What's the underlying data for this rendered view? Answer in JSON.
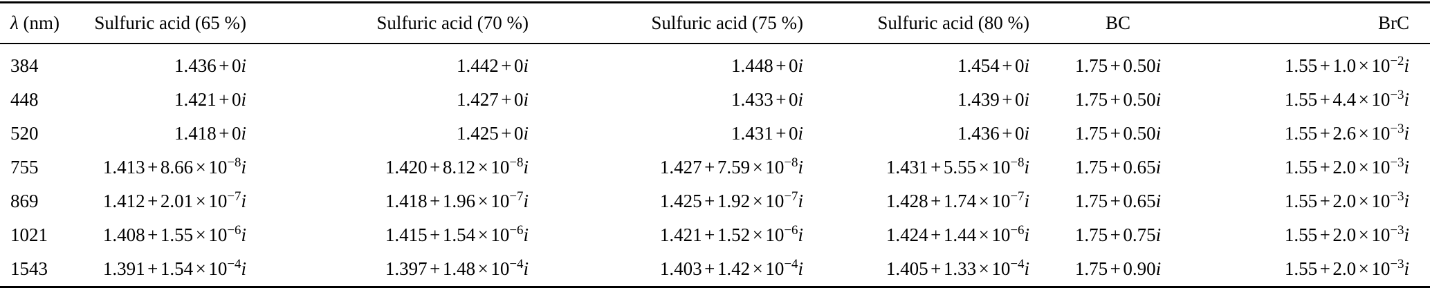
{
  "colors": {
    "background": "#ffffff",
    "text": "#000000",
    "rule": "#000000"
  },
  "table": {
    "plus_symbol": "+",
    "times_symbol": "×",
    "exponent_base": "10",
    "imaginary_unit": "i",
    "columns": [
      {
        "symbol": "λ",
        "unit": " (nm)",
        "label": "λ (nm)",
        "align": "left"
      },
      {
        "label": "Sulfuric acid (65 %)",
        "align": "right"
      },
      {
        "label": "Sulfuric acid (70 %)",
        "align": "right"
      },
      {
        "label": "Sulfuric acid (75 %)",
        "align": "right"
      },
      {
        "label": "Sulfuric acid (80 %)",
        "align": "right"
      },
      {
        "label": "BC",
        "align": "center"
      },
      {
        "label": "BrC",
        "align": "right"
      }
    ],
    "rows": [
      {
        "wavelength": "384",
        "values": [
          {
            "re": "1.436",
            "im": "0"
          },
          {
            "re": "1.442",
            "im": "0"
          },
          {
            "re": "1.448",
            "im": "0"
          },
          {
            "re": "1.454",
            "im": "0"
          },
          {
            "re": "1.75",
            "im": "0.50"
          },
          {
            "re": "1.55",
            "im": "1.0",
            "exp": "−2"
          }
        ]
      },
      {
        "wavelength": "448",
        "values": [
          {
            "re": "1.421",
            "im": "0"
          },
          {
            "re": "1.427",
            "im": "0"
          },
          {
            "re": "1.433",
            "im": "0"
          },
          {
            "re": "1.439",
            "im": "0"
          },
          {
            "re": "1.75",
            "im": "0.50"
          },
          {
            "re": "1.55",
            "im": "4.4",
            "exp": "−3"
          }
        ]
      },
      {
        "wavelength": "520",
        "values": [
          {
            "re": "1.418",
            "im": "0"
          },
          {
            "re": "1.425",
            "im": "0"
          },
          {
            "re": "1.431",
            "im": "0"
          },
          {
            "re": "1.436",
            "im": "0"
          },
          {
            "re": "1.75",
            "im": "0.50"
          },
          {
            "re": "1.55",
            "im": "2.6",
            "exp": "−3"
          }
        ]
      },
      {
        "wavelength": "755",
        "values": [
          {
            "re": "1.413",
            "im": "8.66",
            "exp": "−8"
          },
          {
            "re": "1.420",
            "im": "8.12",
            "exp": "−8"
          },
          {
            "re": "1.427",
            "im": "7.59",
            "exp": "−8"
          },
          {
            "re": "1.431",
            "im": "5.55",
            "exp": "−8"
          },
          {
            "re": "1.75",
            "im": "0.65"
          },
          {
            "re": "1.55",
            "im": "2.0",
            "exp": "−3"
          }
        ]
      },
      {
        "wavelength": "869",
        "values": [
          {
            "re": "1.412",
            "im": "2.01",
            "exp": "−7"
          },
          {
            "re": "1.418",
            "im": "1.96",
            "exp": "−7"
          },
          {
            "re": "1.425",
            "im": "1.92",
            "exp": "−7"
          },
          {
            "re": "1.428",
            "im": "1.74",
            "exp": "−7"
          },
          {
            "re": "1.75",
            "im": "0.65"
          },
          {
            "re": "1.55",
            "im": "2.0",
            "exp": "−3"
          }
        ]
      },
      {
        "wavelength": "1021",
        "values": [
          {
            "re": "1.408",
            "im": "1.55",
            "exp": "−6"
          },
          {
            "re": "1.415",
            "im": "1.54",
            "exp": "−6"
          },
          {
            "re": "1.421",
            "im": "1.52",
            "exp": "−6"
          },
          {
            "re": "1.424",
            "im": "1.44",
            "exp": "−6"
          },
          {
            "re": "1.75",
            "im": "0.75"
          },
          {
            "re": "1.55",
            "im": "2.0",
            "exp": "−3"
          }
        ]
      },
      {
        "wavelength": "1543",
        "values": [
          {
            "re": "1.391",
            "im": "1.54",
            "exp": "−4"
          },
          {
            "re": "1.397",
            "im": "1.48",
            "exp": "−4"
          },
          {
            "re": "1.403",
            "im": "1.42",
            "exp": "−4"
          },
          {
            "re": "1.405",
            "im": "1.33",
            "exp": "−4"
          },
          {
            "re": "1.75",
            "im": "0.90"
          },
          {
            "re": "1.55",
            "im": "2.0",
            "exp": "−3"
          }
        ]
      }
    ]
  }
}
